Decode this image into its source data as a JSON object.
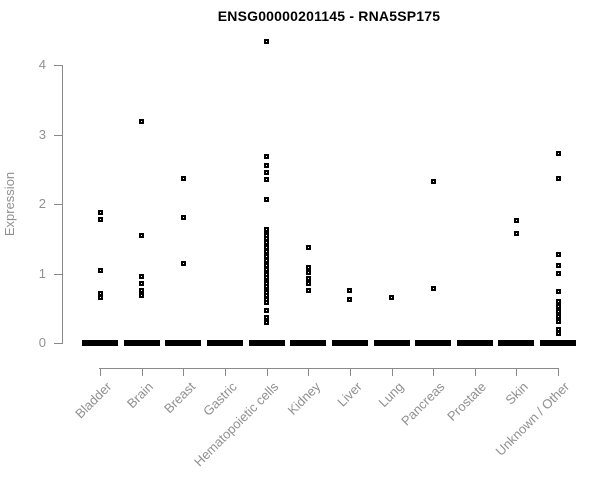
{
  "chart_data": {
    "type": "scatter",
    "subtype": "strip-plot",
    "title": "ENSG00000201145 - RNA5SP175",
    "xlabel": "",
    "ylabel": "Expression",
    "ylim": [
      0,
      4.4
    ],
    "y_ticks": [
      0,
      1,
      2,
      3,
      4
    ],
    "grid": false,
    "legend_position": "none",
    "marker": "small-open-black-square",
    "colors": {
      "points": "#000000",
      "axis": "#8a8a8a",
      "tick_labels": "#909090",
      "title": "#000000",
      "background": "#ffffff"
    },
    "categories": [
      "Bladder",
      "Brain",
      "Breast",
      "Gastric",
      "Hematopoietic cells",
      "Kidney",
      "Liver",
      "Lung",
      "Pancreas",
      "Prostate",
      "Skin",
      "Unknown / Other"
    ],
    "series": [
      {
        "label": "Bladder",
        "zero_cluster": true,
        "values": [
          1.88,
          1.77,
          1.04,
          0.71,
          0.65
        ]
      },
      {
        "label": "Brain",
        "zero_cluster": true,
        "values": [
          3.18,
          1.54,
          0.95,
          0.86,
          0.76,
          0.69
        ]
      },
      {
        "label": "Breast",
        "zero_cluster": true,
        "values": [
          2.36,
          1.8,
          1.15
        ]
      },
      {
        "label": "Gastric",
        "zero_cluster": true,
        "values": []
      },
      {
        "label": "Hematopoietic cells",
        "zero_cluster": true,
        "values": [
          4.34,
          2.69,
          2.56,
          2.45,
          2.35,
          2.06,
          1.63,
          1.58,
          1.54,
          1.5,
          1.45,
          1.41,
          1.37,
          1.32,
          1.28,
          1.24,
          1.19,
          1.15,
          1.11,
          1.06,
          1.02,
          0.98,
          0.94,
          0.89,
          0.85,
          0.81,
          0.76,
          0.72,
          0.68,
          0.63,
          0.58,
          0.47,
          0.36,
          0.3
        ]
      },
      {
        "label": "Kidney",
        "zero_cluster": true,
        "values": [
          1.37,
          1.08,
          1.01,
          0.93,
          0.85,
          0.76
        ]
      },
      {
        "label": "Liver",
        "zero_cluster": true,
        "values": [
          0.76,
          0.63
        ]
      },
      {
        "label": "Lung",
        "zero_cluster": true,
        "values": [
          0.65
        ]
      },
      {
        "label": "Pancreas",
        "zero_cluster": true,
        "values": [
          2.33,
          0.79
        ]
      },
      {
        "label": "Prostate",
        "zero_cluster": true,
        "values": []
      },
      {
        "label": "Skin",
        "zero_cluster": true,
        "values": [
          1.76,
          1.57
        ]
      },
      {
        "label": "Unknown / Other",
        "zero_cluster": true,
        "values": [
          2.72,
          2.36,
          1.28,
          1.12,
          1.0,
          0.74,
          0.59,
          0.52,
          0.45,
          0.38,
          0.31,
          0.19,
          0.14
        ]
      }
    ]
  }
}
